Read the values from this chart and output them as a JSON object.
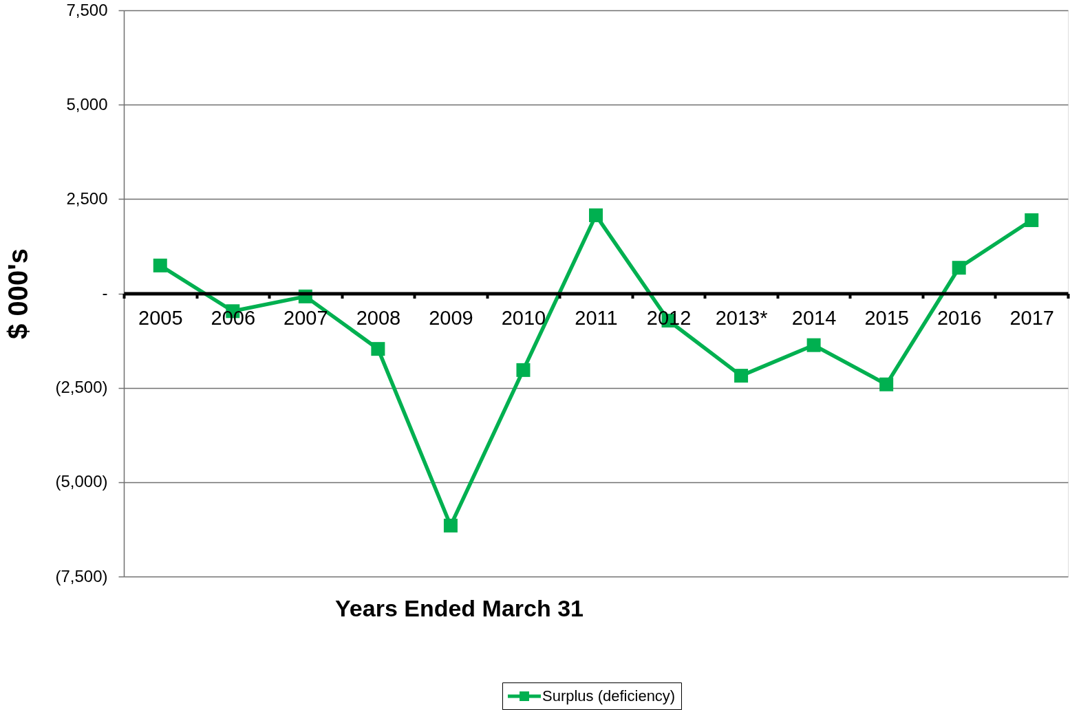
{
  "chart_data": {
    "type": "line",
    "xlabel": "Years Ended March 31",
    "ylabel": "$ 000's",
    "categories": [
      "2005",
      "2006",
      "2007",
      "2008",
      "2009",
      "2010",
      "2011",
      "2012",
      "2013*",
      "2014",
      "2015",
      "2016",
      "2017"
    ],
    "series": [
      {
        "name": "Surplus (deficiency)",
        "color": "#00b050",
        "values": [
          740,
          -470,
          -80,
          -1470,
          -6150,
          -2030,
          2070,
          -720,
          -2180,
          -1370,
          -2410,
          680,
          1940
        ]
      }
    ],
    "ylim": [
      -7500,
      7500
    ],
    "yticks": [
      {
        "value": -7500,
        "label": "(7,500)"
      },
      {
        "value": -5000,
        "label": "(5,000)"
      },
      {
        "value": -2500,
        "label": "(2,500)"
      },
      {
        "value": 0,
        "label": "-"
      },
      {
        "value": 2500,
        "label": "2,500"
      },
      {
        "value": 5000,
        "label": "5,000"
      },
      {
        "value": 7500,
        "label": "7,500"
      }
    ],
    "grid": "y",
    "legend": "bottom",
    "marker": "square",
    "line_style": "solid"
  }
}
